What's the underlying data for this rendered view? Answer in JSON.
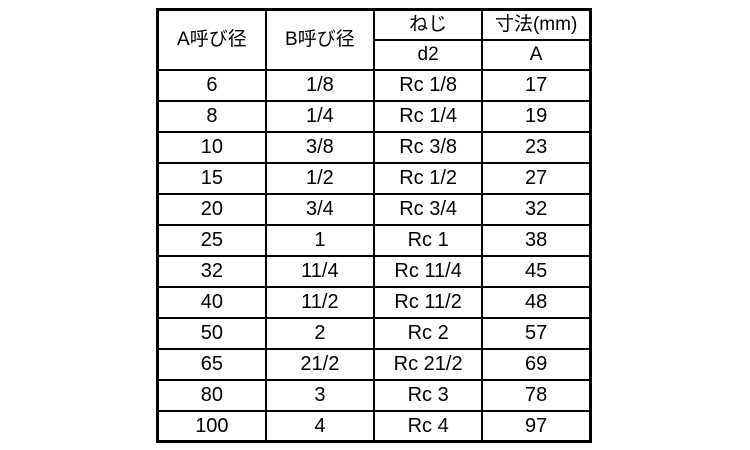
{
  "page": {
    "background_color": "#ffffff",
    "text_color": "#000000",
    "border_color": "#000000"
  },
  "table": {
    "header": {
      "col_a": "A呼び径",
      "col_b": "B呼び径",
      "col_thread": "ねじ",
      "col_dim": "寸法(mm)",
      "sub_thread": "d2",
      "sub_dim": "A"
    },
    "rows": [
      {
        "a": "6",
        "b": "1/8",
        "d2": "Rc 1/8",
        "dim": "17"
      },
      {
        "a": "8",
        "b": "1/4",
        "d2": "Rc 1/4",
        "dim": "19"
      },
      {
        "a": "10",
        "b": "3/8",
        "d2": "Rc 3/8",
        "dim": "23"
      },
      {
        "a": "15",
        "b": "1/2",
        "d2": "Rc 1/2",
        "dim": "27"
      },
      {
        "a": "20",
        "b": "3/4",
        "d2": "Rc 3/4",
        "dim": "32"
      },
      {
        "a": "25",
        "b": "1",
        "d2": "Rc 1",
        "dim": "38"
      },
      {
        "a": "32",
        "b": "11/4",
        "d2": "Rc 11/4",
        "dim": "45"
      },
      {
        "a": "40",
        "b": "11/2",
        "d2": "Rc 11/2",
        "dim": "48"
      },
      {
        "a": "50",
        "b": "2",
        "d2": "Rc 2",
        "dim": "57"
      },
      {
        "a": "65",
        "b": "21/2",
        "d2": "Rc 21/2",
        "dim": "69"
      },
      {
        "a": "80",
        "b": "3",
        "d2": "Rc 3",
        "dim": "78"
      },
      {
        "a": "100",
        "b": "4",
        "d2": "Rc 4",
        "dim": "97"
      }
    ]
  }
}
